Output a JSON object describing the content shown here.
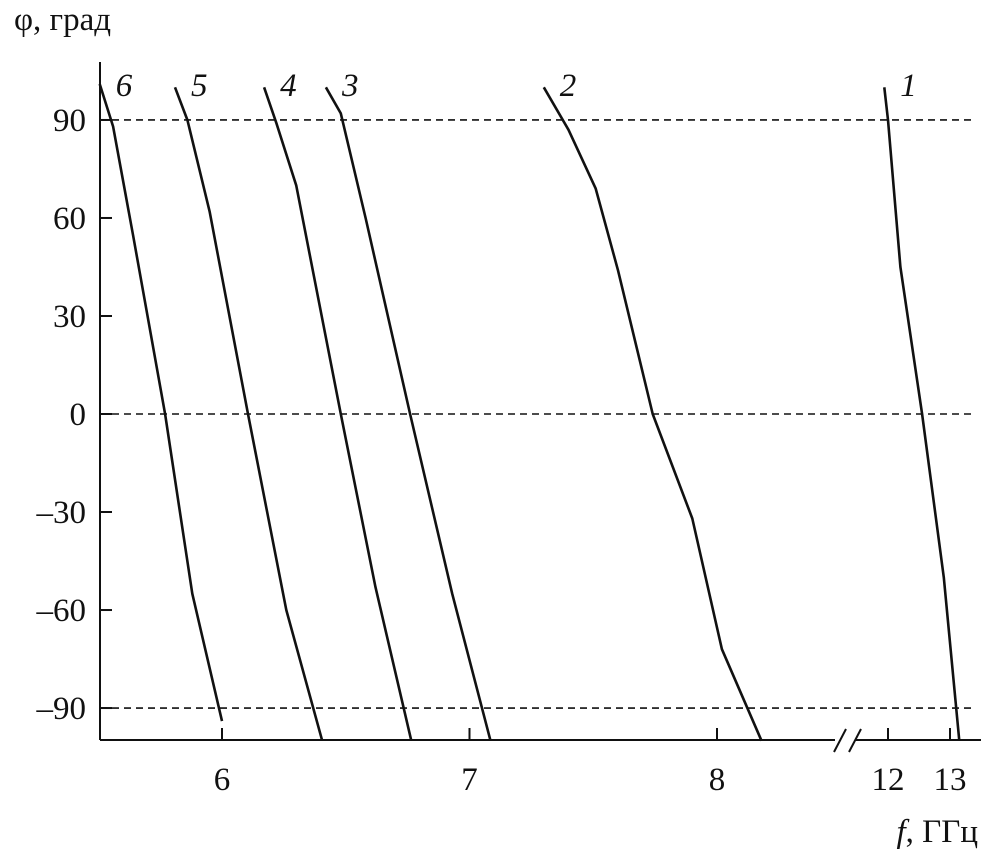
{
  "chart_data": {
    "type": "line",
    "title": "",
    "ylabel": "φ, град",
    "xlabel_italic": "f",
    "xlabel_unit": ", ГГц",
    "ylim": [
      -110,
      110
    ],
    "xlim": [
      5.5,
      13.5
    ],
    "x_axis_break": [
      8.5,
      11.3
    ],
    "yticks": [
      90,
      60,
      30,
      0,
      -30,
      -60,
      -90
    ],
    "ytick_labels": [
      "90",
      "60",
      "30",
      "0",
      "–30",
      "–60",
      "–90"
    ],
    "xticks": [
      6,
      7,
      8,
      12,
      13
    ],
    "xtick_labels": [
      "6",
      "7",
      "8",
      "12",
      "13"
    ],
    "dashed_reference_lines": [
      90,
      0,
      -90
    ],
    "series": [
      {
        "name": "1",
        "points": [
          [
            11.94,
            100
          ],
          [
            12.0,
            90
          ],
          [
            12.2,
            45
          ],
          [
            12.55,
            0
          ],
          [
            12.9,
            -50
          ],
          [
            13.15,
            -100
          ]
        ]
      },
      {
        "name": "2",
        "points": [
          [
            7.3,
            100
          ],
          [
            7.4,
            87
          ],
          [
            7.51,
            69
          ],
          [
            7.6,
            44
          ],
          [
            7.74,
            0
          ],
          [
            7.9,
            -32
          ],
          [
            8.02,
            -72
          ],
          [
            8.18,
            -100
          ]
        ]
      },
      {
        "name": "3",
        "points": [
          [
            6.42,
            100
          ],
          [
            6.48,
            92
          ],
          [
            6.58,
            60
          ],
          [
            6.76,
            0
          ],
          [
            6.93,
            -55
          ],
          [
            7.085,
            -100
          ]
        ]
      },
      {
        "name": "4",
        "points": [
          [
            6.17,
            100
          ],
          [
            6.22,
            89
          ],
          [
            6.3,
            70
          ],
          [
            6.48,
            0
          ],
          [
            6.62,
            -53
          ],
          [
            6.765,
            -100
          ]
        ]
      },
      {
        "name": "5",
        "points": [
          [
            5.81,
            100
          ],
          [
            5.86,
            90
          ],
          [
            5.95,
            62
          ],
          [
            6.105,
            0
          ],
          [
            6.26,
            -60
          ],
          [
            6.405,
            -100
          ]
        ]
      },
      {
        "name": "6",
        "points": [
          [
            5.506,
            101
          ],
          [
            5.56,
            88
          ],
          [
            5.64,
            55
          ],
          [
            5.77,
            0
          ],
          [
            5.88,
            -55
          ],
          [
            6.0,
            -94
          ]
        ]
      }
    ],
    "line_color": "#111111",
    "grid": false
  }
}
